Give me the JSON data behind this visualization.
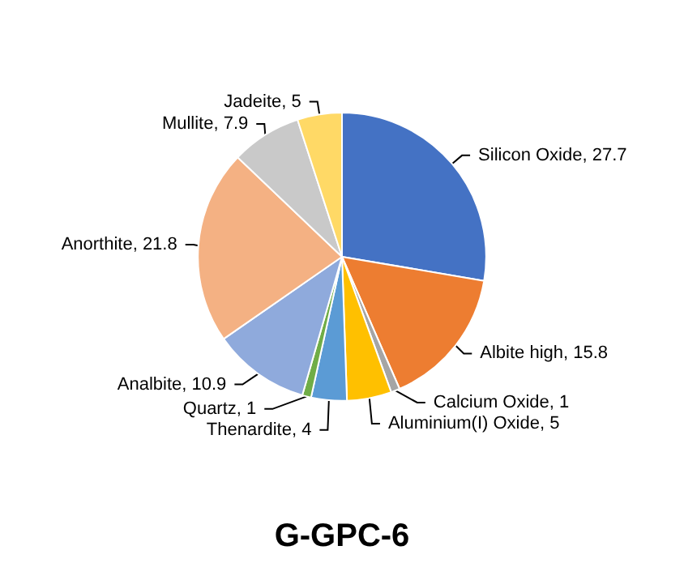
{
  "chart_data": {
    "type": "pie",
    "title": "G-GPC-6",
    "categories": [
      "Silicon Oxide",
      "Albite high",
      "Calcium Oxide",
      "Aluminium(I) Oxide",
      "Thenardite",
      "Quartz",
      "Analbite",
      "Anorthite",
      "Mullite",
      "Jadeite"
    ],
    "values": [
      27.7,
      15.8,
      1,
      5,
      4,
      1,
      10.9,
      21.8,
      7.9,
      5
    ],
    "colors": [
      "#4472c4",
      "#ed7d31",
      "#a5a5a5",
      "#ffc000",
      "#5b9bd5",
      "#70ad47",
      "#8faadc",
      "#f4b183",
      "#c9c9c9",
      "#ffd966"
    ],
    "value_labels": [
      ", 27.7",
      ", 15.8",
      ", 1",
      ", 5",
      ", 4",
      ", 1",
      ", 10.9",
      ", 21.8",
      ", 7.9",
      ", 5"
    ]
  }
}
